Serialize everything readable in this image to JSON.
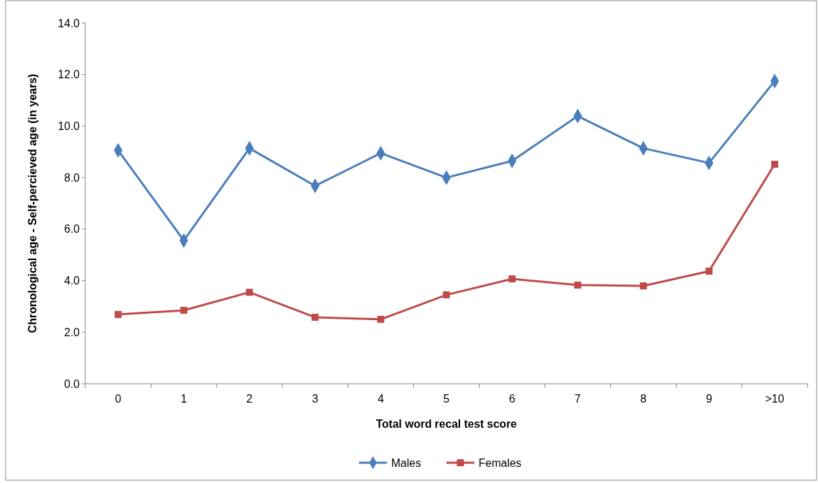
{
  "chart_data": {
    "type": "line",
    "xlabel": "Total word recal test score",
    "ylabel": "Chronological age - Self-percieved age (in years)",
    "categories": [
      "0",
      "1",
      "2",
      "3",
      "4",
      "5",
      "6",
      "7",
      "8",
      "9",
      ">10"
    ],
    "series": [
      {
        "name": "Males",
        "color": "#4a7ebb",
        "marker": "diamond",
        "values": [
          9.06,
          5.56,
          9.14,
          7.68,
          8.95,
          8.0,
          8.65,
          10.39,
          9.14,
          8.57,
          11.75
        ]
      },
      {
        "name": "Females",
        "color": "#be4b48",
        "marker": "square",
        "values": [
          2.69,
          2.85,
          3.55,
          2.58,
          2.5,
          3.45,
          4.07,
          3.83,
          3.8,
          4.37,
          8.52
        ]
      }
    ],
    "ylim": [
      0,
      14
    ],
    "yticks": [
      {
        "value": 0,
        "label": "0.0"
      },
      {
        "value": 2,
        "label": "2.0"
      },
      {
        "value": 4,
        "label": "4.0"
      },
      {
        "value": 6,
        "label": "6.0"
      },
      {
        "value": 8,
        "label": "8.0"
      },
      {
        "value": 10,
        "label": "10.0"
      },
      {
        "value": 12,
        "label": "12.0"
      },
      {
        "value": 14,
        "label": "14.0"
      }
    ],
    "grid": false,
    "legend": "bottom",
    "line_style": "solid"
  }
}
